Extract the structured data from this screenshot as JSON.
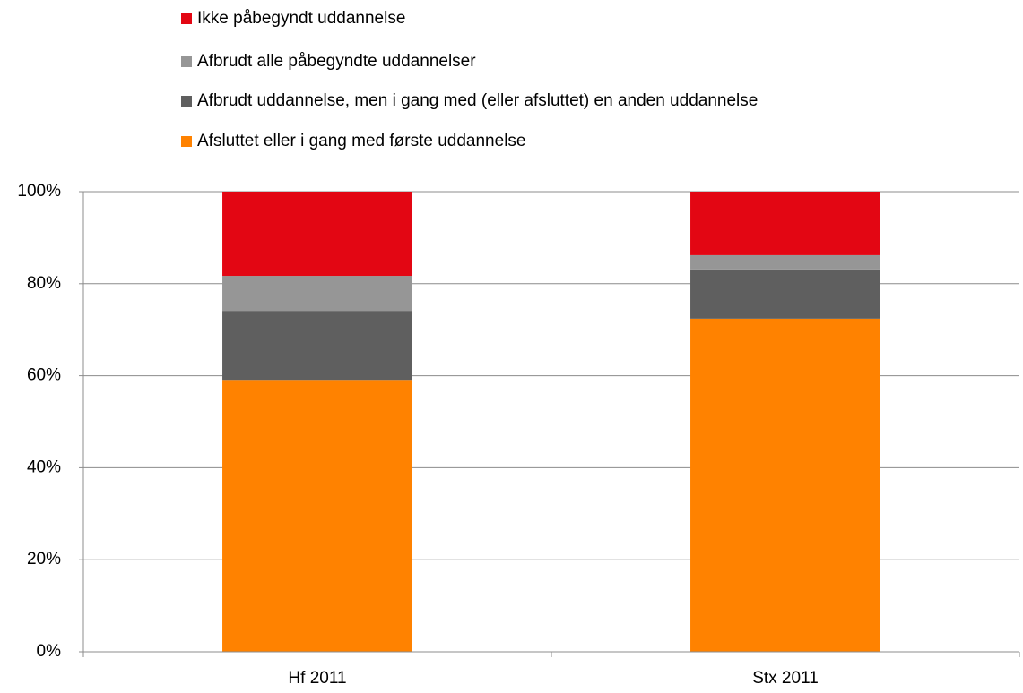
{
  "chart_data": {
    "type": "stacked_bar",
    "categories": [
      "Hf 2011",
      "Stx 2011"
    ],
    "series": [
      {
        "name": "Afsluttet eller i gang med første uddannelse",
        "color": "#ff8200",
        "values": [
          59.1,
          72.4
        ]
      },
      {
        "name": "Afbrudt uddannelse, men i gang med (eller afsluttet) en anden uddannelse",
        "color": "#5f5f5f",
        "values": [
          15.0,
          10.7
        ]
      },
      {
        "name": "Afbrudt alle påbegyndte uddannelser",
        "color": "#969696",
        "values": [
          7.6,
          3.1
        ]
      },
      {
        "name": "Ikke påbegyndt uddannelse",
        "color": "#e30613",
        "values": [
          18.3,
          13.8
        ]
      }
    ],
    "ylim": [
      0,
      100
    ],
    "yticks": [
      {
        "value": 0,
        "label": "0%"
      },
      {
        "value": 20,
        "label": "20%"
      },
      {
        "value": 40,
        "label": "40%"
      },
      {
        "value": 60,
        "label": "60%"
      },
      {
        "value": 80,
        "label": "80%"
      },
      {
        "value": 100,
        "label": "100%"
      }
    ],
    "grid": true
  }
}
